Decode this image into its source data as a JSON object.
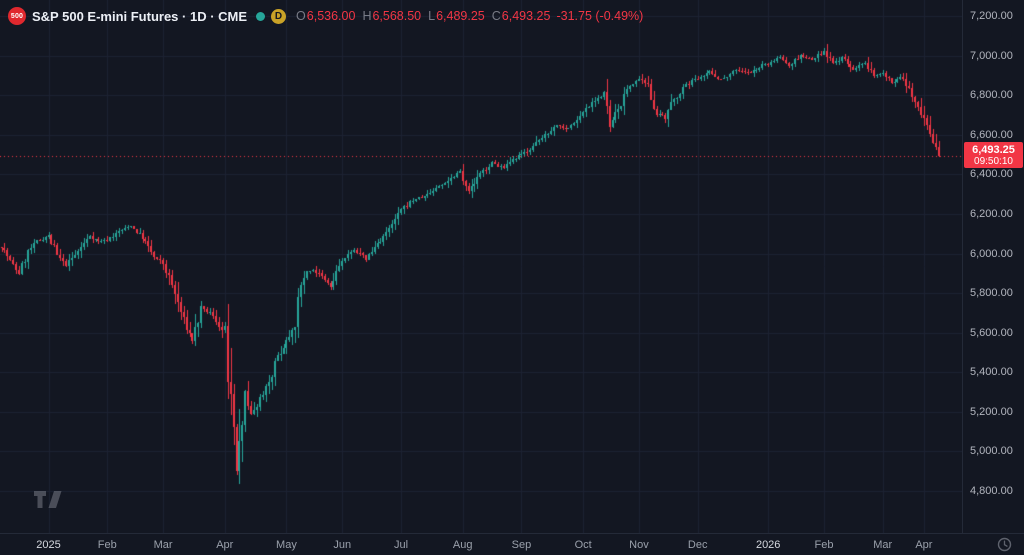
{
  "header": {
    "symbol_logo": "500",
    "title": "S&P 500 E-mini Futures · 1D · CME",
    "delayed_badge": "D",
    "ohlc_items": [
      {
        "label": "O",
        "value": "6,536.00"
      },
      {
        "label": "H",
        "value": "6,568.50"
      },
      {
        "label": "L",
        "value": "6,489.25"
      },
      {
        "label": "C",
        "value": "6,493.25"
      }
    ],
    "change": "-31.75 (-0.49%)"
  },
  "price_axis": {
    "ticks": [
      "7,200.00",
      "7,000.00",
      "6,800.00",
      "6,600.00",
      "6,400.00",
      "6,200.00",
      "6,000.00",
      "5,800.00",
      "5,600.00",
      "5,400.00",
      "5,200.00",
      "5,000.00",
      "4,800.00"
    ],
    "last_price": "6,493.25",
    "countdown": "09:50:10"
  },
  "time_axis": {
    "labels": [
      {
        "text": "2025",
        "day": 16,
        "strong": true
      },
      {
        "text": "Feb",
        "day": 36
      },
      {
        "text": "Mar",
        "day": 55
      },
      {
        "text": "Apr",
        "day": 76
      },
      {
        "text": "May",
        "day": 97
      },
      {
        "text": "Jun",
        "day": 116
      },
      {
        "text": "Jul",
        "day": 136
      },
      {
        "text": "Aug",
        "day": 157
      },
      {
        "text": "Sep",
        "day": 177
      },
      {
        "text": "Oct",
        "day": 198
      },
      {
        "text": "Nov",
        "day": 217
      },
      {
        "text": "Dec",
        "day": 237
      },
      {
        "text": "2026",
        "day": 261,
        "strong": true
      },
      {
        "text": "Feb",
        "day": 280
      },
      {
        "text": "Mar",
        "day": 300
      },
      {
        "text": "Apr",
        "day": 314
      }
    ]
  },
  "colors": {
    "bg": "#131722",
    "grid": "#1c2233",
    "up": "#26a69a",
    "down": "#f23645",
    "axis_text": "#b2b5be",
    "dim_text": "#787b86",
    "badge_yellow": "#c9a227"
  },
  "chart_data": {
    "type": "candlestick",
    "title": "S&P 500 E-mini Futures, 1D, CME",
    "symbol": "S&P 500 E-mini Futures",
    "timeframe": "1D",
    "exchange": "CME",
    "last_day_ohlc": {
      "open": 6536.0,
      "high": 6568.5,
      "low": 6489.25,
      "close": 6493.25,
      "change": -31.75,
      "change_pct": -0.49
    },
    "last_price": 6493.25,
    "ylim": [
      4588,
      7281
    ],
    "y_ticks": [
      7200,
      7000,
      6800,
      6600,
      6400,
      6200,
      6000,
      5800,
      5600,
      5400,
      5200,
      5000,
      4800
    ],
    "days_total": 320,
    "anchors": [
      [
        0,
        6040
      ],
      [
        3,
        5960
      ],
      [
        6,
        5900
      ],
      [
        9,
        6010
      ],
      [
        12,
        6060
      ],
      [
        16,
        6090
      ],
      [
        19,
        5990
      ],
      [
        22,
        5940
      ],
      [
        26,
        6010
      ],
      [
        30,
        6090
      ],
      [
        33,
        6060
      ],
      [
        36,
        6070
      ],
      [
        40,
        6110
      ],
      [
        44,
        6140
      ],
      [
        48,
        6080
      ],
      [
        52,
        5980
      ],
      [
        55,
        5950
      ],
      [
        58,
        5840
      ],
      [
        62,
        5660
      ],
      [
        65,
        5560
      ],
      [
        68,
        5720
      ],
      [
        71,
        5700
      ],
      [
        74,
        5640
      ],
      [
        76,
        5580
      ],
      [
        78,
        5210
      ],
      [
        80,
        4890
      ],
      [
        81,
        5080
      ],
      [
        83,
        5320
      ],
      [
        85,
        5180
      ],
      [
        88,
        5270
      ],
      [
        91,
        5360
      ],
      [
        94,
        5480
      ],
      [
        97,
        5560
      ],
      [
        100,
        5660
      ],
      [
        103,
        5900
      ],
      [
        106,
        5920
      ],
      [
        109,
        5880
      ],
      [
        112,
        5830
      ],
      [
        115,
        5940
      ],
      [
        116,
        5960
      ],
      [
        120,
        6020
      ],
      [
        124,
        5970
      ],
      [
        128,
        6050
      ],
      [
        132,
        6120
      ],
      [
        135,
        6190
      ],
      [
        136,
        6220
      ],
      [
        140,
        6270
      ],
      [
        144,
        6290
      ],
      [
        148,
        6330
      ],
      [
        152,
        6370
      ],
      [
        156,
        6420
      ],
      [
        157,
        6390
      ],
      [
        159,
        6310
      ],
      [
        163,
        6400
      ],
      [
        167,
        6460
      ],
      [
        171,
        6430
      ],
      [
        175,
        6480
      ],
      [
        177,
        6500
      ],
      [
        181,
        6540
      ],
      [
        185,
        6600
      ],
      [
        189,
        6650
      ],
      [
        193,
        6630
      ],
      [
        197,
        6690
      ],
      [
        198,
        6720
      ],
      [
        202,
        6780
      ],
      [
        205,
        6800
      ],
      [
        207,
        6640
      ],
      [
        210,
        6730
      ],
      [
        214,
        6850
      ],
      [
        217,
        6880
      ],
      [
        220,
        6840
      ],
      [
        223,
        6710
      ],
      [
        226,
        6680
      ],
      [
        229,
        6780
      ],
      [
        233,
        6850
      ],
      [
        237,
        6890
      ],
      [
        241,
        6920
      ],
      [
        245,
        6880
      ],
      [
        250,
        6930
      ],
      [
        255,
        6910
      ],
      [
        259,
        6950
      ],
      [
        261,
        6960
      ],
      [
        265,
        6990
      ],
      [
        268,
        6950
      ],
      [
        272,
        7000
      ],
      [
        276,
        6980
      ],
      [
        280,
        7020
      ],
      [
        283,
        6960
      ],
      [
        286,
        6990
      ],
      [
        290,
        6930
      ],
      [
        294,
        6960
      ],
      [
        297,
        6900
      ],
      [
        300,
        6920
      ],
      [
        303,
        6860
      ],
      [
        306,
        6890
      ],
      [
        309,
        6820
      ],
      [
        312,
        6750
      ],
      [
        314,
        6680
      ],
      [
        316,
        6590
      ],
      [
        318,
        6536
      ],
      [
        319,
        6493.25
      ]
    ],
    "last_candle": {
      "o": 6536.0,
      "h": 6568.5,
      "l": 6489.25,
      "c": 6493.25
    }
  }
}
